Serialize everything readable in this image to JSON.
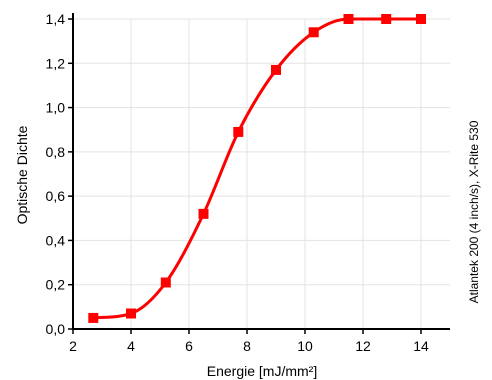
{
  "chart_data": {
    "type": "line",
    "title": "",
    "xlabel": "Energie [mJ/mm²]",
    "ylabel": "Optische Dichte",
    "side_note": "Atlantek 200 (4 inch/s), X-Rite 530",
    "xlim": [
      2,
      15
    ],
    "ylim": [
      0,
      1.4
    ],
    "x_ticks": [
      2,
      4,
      6,
      8,
      10,
      12,
      14
    ],
    "x_tick_labels": [
      "2",
      "4",
      "6",
      "8",
      "10",
      "12",
      "14"
    ],
    "y_ticks": [
      0,
      0.2,
      0.4,
      0.6,
      0.8,
      1.0,
      1.2,
      1.4
    ],
    "y_tick_labels": [
      "0,0",
      "0,2",
      "0,4",
      "0,6",
      "0,8",
      "1,0",
      "1,2",
      "1,4"
    ],
    "grid": true,
    "color": "#ff0000",
    "marker": "square",
    "series": [
      {
        "x": [
          2.7,
          4.0,
          5.2,
          6.5,
          7.7,
          9.0,
          10.3,
          11.5,
          12.8,
          14.0
        ],
        "y": [
          0.05,
          0.07,
          0.21,
          0.52,
          0.89,
          1.17,
          1.34,
          1.4,
          1.4,
          1.4
        ]
      }
    ]
  }
}
